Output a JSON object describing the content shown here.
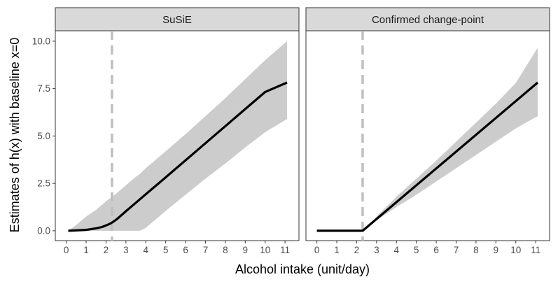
{
  "chart_data": {
    "type": "line",
    "xlabel": "Alcohol intake (unit/day)",
    "ylabel": "Estimates of h(x) with baseline x=0",
    "xlim": [
      -0.55,
      11.7
    ],
    "ylim": [
      -0.52,
      10.55
    ],
    "x_ticks": [
      0,
      1,
      2,
      3,
      4,
      5,
      6,
      7,
      8,
      9,
      10,
      11
    ],
    "x_tick_labels": [
      "0",
      "1",
      "2",
      "3",
      "4",
      "5",
      "6",
      "7",
      "8",
      "9",
      "10",
      "11"
    ],
    "y_ticks": [
      0,
      2.5,
      5,
      7.5,
      10
    ],
    "y_tick_labels": [
      "0.0",
      "2.5",
      "5.0",
      "7.5",
      "10.0"
    ],
    "reference_line_x": 2.3,
    "colors": {
      "line": "#000000",
      "band": "#cccccc",
      "strip": "#d9d9d9",
      "reference": "#bfbfbf"
    },
    "panels": [
      {
        "title": "SuSiE",
        "estimate": {
          "x": [
            0.1,
            0.5,
            1.0,
            1.5,
            1.8,
            2.0,
            2.2,
            2.4,
            2.6,
            2.8,
            3.0,
            3.5,
            4.0,
            5.0,
            6.0,
            7.0,
            8.0,
            9.0,
            10.0,
            11.1
          ],
          "y": [
            0.0,
            0.02,
            0.05,
            0.13,
            0.2,
            0.28,
            0.37,
            0.5,
            0.66,
            0.85,
            1.03,
            1.48,
            1.93,
            2.82,
            3.72,
            4.62,
            5.52,
            6.42,
            7.32,
            7.82
          ]
        },
        "band": {
          "x": [
            0.1,
            0.5,
            1.0,
            1.5,
            2.0,
            2.5,
            3.0,
            3.5,
            3.7,
            4.0,
            5.0,
            6.0,
            7.0,
            8.0,
            9.0,
            10.0,
            11.1
          ],
          "lower": [
            0.0,
            0.0,
            0.0,
            0.0,
            0.0,
            0.0,
            0.0,
            0.0,
            0.0,
            0.15,
            1.05,
            1.9,
            2.75,
            3.55,
            4.4,
            5.2,
            5.9
          ],
          "upper": [
            0.0,
            0.3,
            0.75,
            1.1,
            1.55,
            1.95,
            2.4,
            2.85,
            3.0,
            3.3,
            4.2,
            5.1,
            6.05,
            7.0,
            8.0,
            9.0,
            10.0
          ]
        }
      },
      {
        "title": "Confirmed change-point",
        "estimate": {
          "x": [
            0.0,
            2.3,
            11.1
          ],
          "y": [
            0.0,
            0.0,
            7.82
          ]
        },
        "band": {
          "x": [
            2.3,
            3.0,
            4.0,
            5.0,
            6.0,
            7.0,
            8.0,
            9.0,
            10.0,
            11.1
          ],
          "lower": [
            0.0,
            0.55,
            1.25,
            1.9,
            2.6,
            3.3,
            4.0,
            4.7,
            5.4,
            6.05
          ],
          "upper": [
            0.0,
            0.75,
            1.8,
            2.75,
            3.7,
            4.7,
            5.7,
            6.7,
            7.8,
            9.65
          ]
        }
      }
    ]
  }
}
